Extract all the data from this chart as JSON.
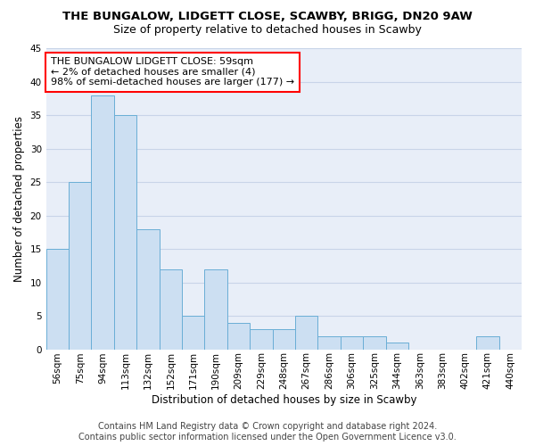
{
  "title": "THE BUNGALOW, LIDGETT CLOSE, SCAWBY, BRIGG, DN20 9AW",
  "subtitle": "Size of property relative to detached houses in Scawby",
  "xlabel": "Distribution of detached houses by size in Scawby",
  "ylabel": "Number of detached properties",
  "categories": [
    "56sqm",
    "75sqm",
    "94sqm",
    "113sqm",
    "132sqm",
    "152sqm",
    "171sqm",
    "190sqm",
    "209sqm",
    "229sqm",
    "248sqm",
    "267sqm",
    "286sqm",
    "306sqm",
    "325sqm",
    "344sqm",
    "363sqm",
    "383sqm",
    "402sqm",
    "421sqm",
    "440sqm"
  ],
  "values": [
    15,
    25,
    38,
    35,
    18,
    12,
    5,
    12,
    4,
    3,
    3,
    5,
    2,
    2,
    2,
    1,
    0,
    0,
    0,
    2,
    0
  ],
  "bar_color": "#ccdff2",
  "bar_edge_color": "#6aaed6",
  "annotation_text": "THE BUNGALOW LIDGETT CLOSE: 59sqm\n← 2% of detached houses are smaller (4)\n98% of semi-detached houses are larger (177) →",
  "ylim": [
    0,
    45
  ],
  "yticks": [
    0,
    5,
    10,
    15,
    20,
    25,
    30,
    35,
    40,
    45
  ],
  "grid_color": "#c8d4e8",
  "background_color": "#e8eef8",
  "footer_line1": "Contains HM Land Registry data © Crown copyright and database right 2024.",
  "footer_line2": "Contains public sector information licensed under the Open Government Licence v3.0.",
  "title_fontsize": 9.5,
  "subtitle_fontsize": 9,
  "annotation_fontsize": 8,
  "axis_label_fontsize": 8.5,
  "tick_fontsize": 7.5,
  "footer_fontsize": 7
}
